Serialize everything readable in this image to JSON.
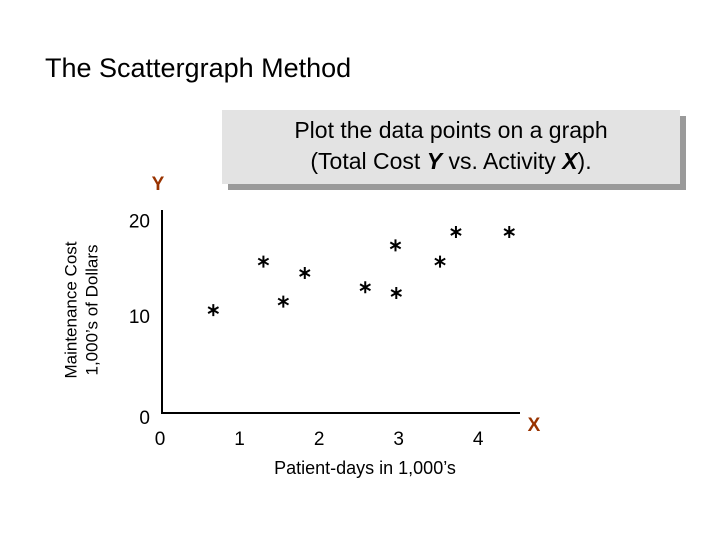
{
  "chart_data": {
    "type": "scatter",
    "title": "The Scattergraph Method",
    "annotation": {
      "line1": "Plot the data points on a graph",
      "line2": [
        "(Total Cost ",
        "Y",
        " vs. Activity ",
        "X",
        ")."
      ]
    },
    "x_label": "Patient-days in 1,000’s",
    "y_label": [
      "Maintenance Cost",
      "1,000’s of Dollars"
    ],
    "x_symbol": "X",
    "y_symbol": "Y",
    "x": [
      0.67,
      1.3,
      1.82,
      1.55,
      2.58,
      2.96,
      2.97,
      3.52,
      3.72,
      4.39
    ],
    "values": [
      10.8,
      15.9,
      14.7,
      11.7,
      13.2,
      17.6,
      12.6,
      15.9,
      19.0,
      19.0
    ],
    "color": "#000000",
    "symbol_color": "#993300",
    "xlim": [
      0,
      4.5
    ],
    "ylim": [
      0,
      21
    ],
    "xticks": [
      0,
      1,
      2,
      3,
      4
    ],
    "yticks": [
      0,
      10,
      20
    ],
    "grid": false
  }
}
